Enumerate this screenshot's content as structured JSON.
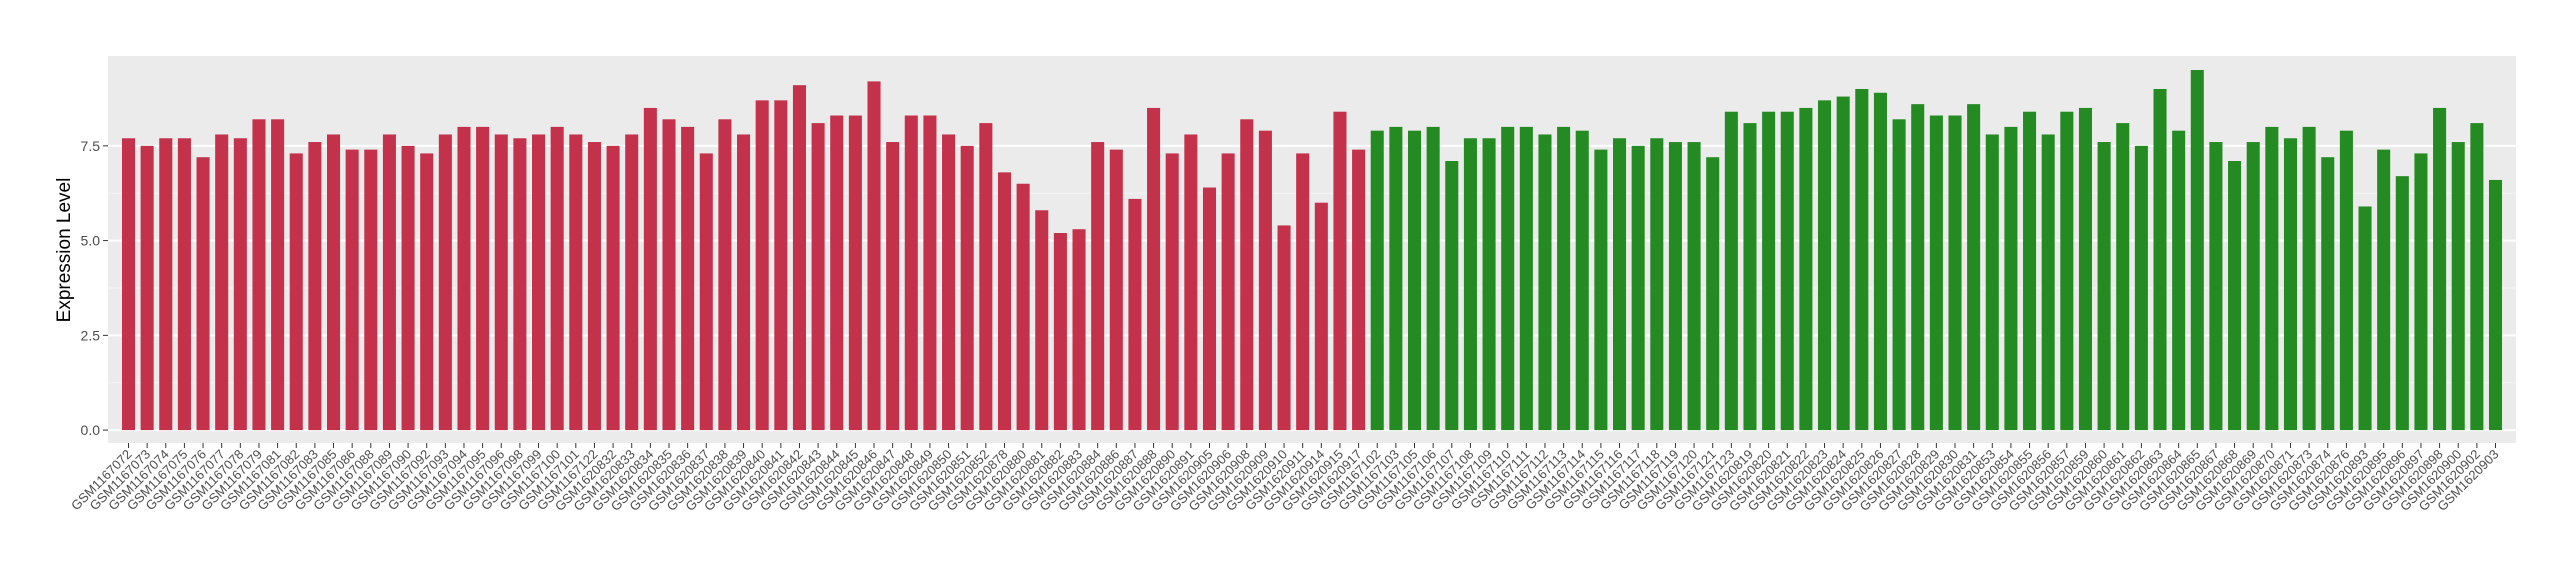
{
  "chart_data": {
    "type": "bar",
    "y_label": "Expression Level",
    "ylim": [
      -0.34,
      9.87
    ],
    "yticks": [
      {
        "value": 0,
        "label": "0.0"
      },
      2.5,
      {
        "value": 5,
        "label": "5.0"
      },
      7.5
    ],
    "grid": true,
    "series": [
      {
        "color": "#c4314b",
        "categories": [
          "GSM1167072",
          "GSM1167073",
          "GSM1167074",
          "GSM1167075",
          "GSM1167076",
          "GSM1167077",
          "GSM1167078",
          "GSM1167079",
          "GSM1167081",
          "GSM1167082",
          "GSM1167083",
          "GSM1167085",
          "GSM1167086",
          "GSM1167088",
          "GSM1167089",
          "GSM1167090",
          "GSM1167092",
          "GSM1167093",
          "GSM1167094",
          "GSM1167095",
          "GSM1167096",
          "GSM1167098",
          "GSM1167099",
          "GSM1167100",
          "GSM1167101",
          "GSM1167122",
          "GSM1620832",
          "GSM1620833",
          "GSM1620834",
          "GSM1620835",
          "GSM1620836",
          "GSM1620837",
          "GSM1620838",
          "GSM1620839",
          "GSM1620840",
          "GSM1620841",
          "GSM1620842",
          "GSM1620843",
          "GSM1620844",
          "GSM1620845",
          "GSM1620846",
          "GSM1620847",
          "GSM1620848",
          "GSM1620849",
          "GSM1620850",
          "GSM1620851",
          "GSM1620852",
          "GSM1620878",
          "GSM1620880",
          "GSM1620881",
          "GSM1620882",
          "GSM1620883",
          "GSM1620884",
          "GSM1620886",
          "GSM1620887",
          "GSM1620888",
          "GSM1620890",
          "GSM1620891",
          "GSM1620905",
          "GSM1620906",
          "GSM1620908",
          "GSM1620909",
          "GSM1620910",
          "GSM1620911",
          "GSM1620914",
          "GSM1620915",
          "GSM1620917"
        ],
        "values": [
          7.7,
          7.5,
          7.7,
          7.7,
          7.2,
          7.8,
          7.7,
          8.2,
          8.2,
          7.3,
          7.6,
          7.8,
          7.4,
          7.4,
          7.8,
          7.5,
          7.3,
          7.8,
          8.0,
          8.0,
          7.8,
          7.7,
          7.8,
          8.0,
          7.8,
          7.6,
          7.5,
          7.8,
          8.5,
          8.2,
          8.0,
          7.3,
          8.2,
          7.8,
          8.7,
          8.7,
          9.1,
          8.1,
          8.3,
          8.3,
          9.2,
          7.6,
          8.3,
          8.3,
          7.8,
          7.5,
          8.1,
          6.8,
          6.5,
          5.8,
          5.2,
          5.3,
          7.6,
          7.4,
          6.1,
          8.5,
          7.3,
          7.8,
          6.4,
          7.3,
          8.2,
          7.9,
          5.4,
          7.3,
          6.0,
          8.4,
          7.4
        ]
      },
      {
        "color": "#238b22",
        "categories": [
          "GSM1167102",
          "GSM1167103",
          "GSM1167105",
          "GSM1167106",
          "GSM1167107",
          "GSM1167108",
          "GSM1167109",
          "GSM1167110",
          "GSM1167111",
          "GSM1167112",
          "GSM1167113",
          "GSM1167114",
          "GSM1167115",
          "GSM1167116",
          "GSM1167117",
          "GSM1167118",
          "GSM1167119",
          "GSM1167120",
          "GSM1167121",
          "GSM1167123",
          "GSM1620819",
          "GSM1620820",
          "GSM1620821",
          "GSM1620822",
          "GSM1620823",
          "GSM1620824",
          "GSM1620825",
          "GSM1620826",
          "GSM1620827",
          "GSM1620828",
          "GSM1620829",
          "GSM1620830",
          "GSM1620831",
          "GSM1620853",
          "GSM1620854",
          "GSM1620855",
          "GSM1620856",
          "GSM1620857",
          "GSM1620859",
          "GSM1620860",
          "GSM1620861",
          "GSM1620862",
          "GSM1620863",
          "GSM1620864",
          "GSM1620865",
          "GSM1620867",
          "GSM1620868",
          "GSM1620869",
          "GSM1620870",
          "GSM1620871",
          "GSM1620873",
          "GSM1620874",
          "GSM1620876",
          "GSM1620893",
          "GSM1620895",
          "GSM1620896",
          "GSM1620897",
          "GSM1620898",
          "GSM1620900",
          "GSM1620902",
          "GSM1620903"
        ],
        "values": [
          7.9,
          8.0,
          7.9,
          8.0,
          7.1,
          7.7,
          7.7,
          8.0,
          8.0,
          7.8,
          8.0,
          7.9,
          7.4,
          7.7,
          7.5,
          7.7,
          7.6,
          7.6,
          7.2,
          8.4,
          8.1,
          8.4,
          8.4,
          8.5,
          8.7,
          8.8,
          9.0,
          8.9,
          8.2,
          8.6,
          8.3,
          8.3,
          8.6,
          7.8,
          8.0,
          8.4,
          7.8,
          8.4,
          8.5,
          7.6,
          8.1,
          7.5,
          9.0,
          7.9,
          9.5,
          7.6,
          7.1,
          7.6,
          8.0,
          7.7,
          8.0,
          7.2,
          7.9,
          5.9,
          7.4,
          6.7,
          7.3,
          8.5,
          7.6,
          8.1,
          6.6
        ]
      }
    ]
  }
}
